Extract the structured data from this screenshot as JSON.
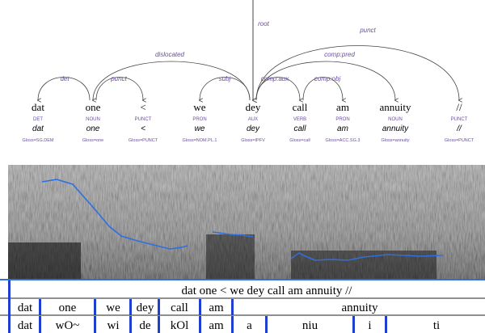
{
  "tree": {
    "root_label": "root",
    "arcs": [
      "det",
      "punct",
      "dislocated",
      "subj",
      "comp:aux",
      "comp:obj",
      "comp:pred",
      "punct"
    ],
    "tokens": [
      {
        "form": "dat",
        "upos": "DET",
        "form_alt": "dat",
        "gloss": "Gloss=SG.DEM"
      },
      {
        "form": "one",
        "upos": "NOUN",
        "form_alt": "one",
        "gloss": "Gloss=one"
      },
      {
        "form": "<",
        "upos": "PUNCT",
        "form_alt": "<",
        "gloss": "Gloss=PUNCT"
      },
      {
        "form": "we",
        "upos": "PRON",
        "form_alt": "we",
        "gloss": "Gloss=NOM.PL.1"
      },
      {
        "form": "dey",
        "upos": "AUX",
        "form_alt": "dey",
        "gloss": "Gloss=IPFV"
      },
      {
        "form": "call",
        "upos": "VERB",
        "form_alt": "call",
        "gloss": "Gloss=call"
      },
      {
        "form": "am",
        "upos": "PRON",
        "form_alt": "am",
        "gloss": "Gloss=ACC.SG.3"
      },
      {
        "form": "annuity",
        "upos": "NOUN",
        "form_alt": "annuity",
        "gloss": "Gloss=annuity"
      },
      {
        "form": "//",
        "upos": "PUNCT",
        "form_alt": "//",
        "gloss": "Gloss=PUNCT"
      }
    ]
  },
  "textgrid": {
    "sentence": "dat one < we dey call am annuity //",
    "words": [
      "dat",
      "one",
      "we",
      "dey",
      "call",
      "am",
      "annuity"
    ],
    "phones": [
      "dat",
      "wO~",
      "wi",
      "de",
      "kOl",
      "am",
      "a",
      "niu",
      "i",
      "ti"
    ]
  }
}
